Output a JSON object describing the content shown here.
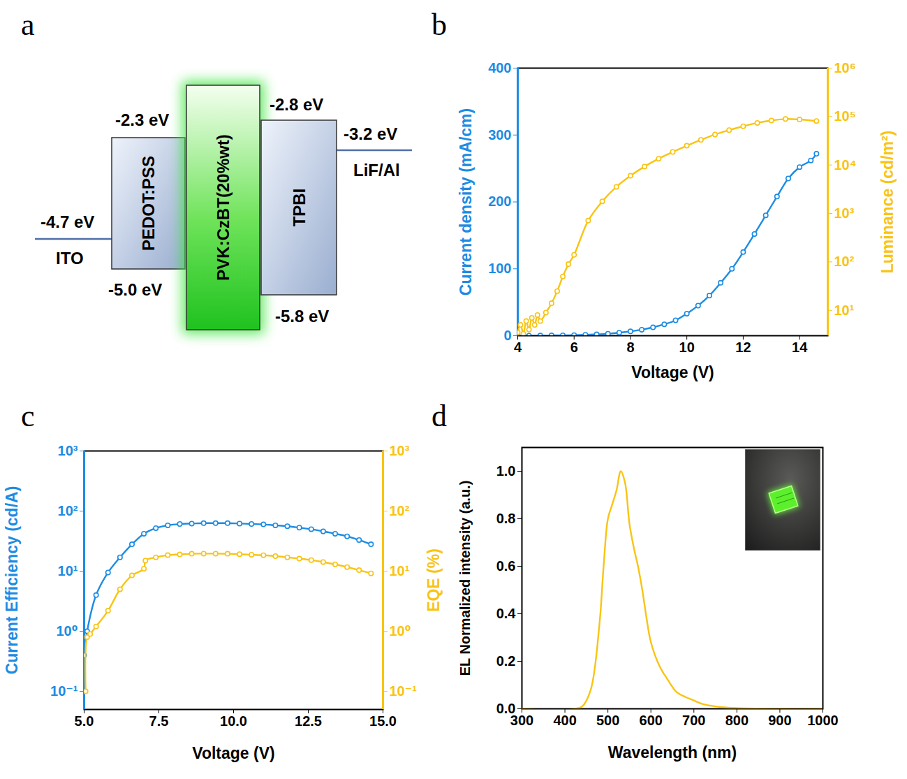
{
  "diagram": {
    "panel": "a",
    "electrodes": [
      {
        "name": "ITO",
        "level": "-4.7 eV"
      },
      {
        "name": "LiF/Al",
        "level": "-3.2 eV"
      }
    ],
    "layers": [
      {
        "name": "PEDOT:PSS",
        "lumo": "-2.3 eV",
        "homo": "-5.0 eV"
      },
      {
        "name": "PVK:CzBT(20%wt)"
      },
      {
        "name": "TPBI",
        "lumo": "-2.8 eV",
        "homo": "-5.8 eV"
      }
    ]
  },
  "chart_data": [
    {
      "panel": "b",
      "type": "line",
      "x_label": "Voltage (V)",
      "y_label": "Current density (mA/cm)",
      "y2_label": "Luminance (cd/m²)",
      "xlim": [
        4,
        15
      ],
      "xticks": [
        4,
        6,
        8,
        10,
        12,
        14
      ],
      "ylim": [
        0,
        400
      ],
      "yticks": [
        0,
        100,
        200,
        300,
        400
      ],
      "y2lim": [
        3,
        1000000
      ],
      "y2ticks": [
        {
          "value": 10,
          "label": "10¹"
        },
        {
          "value": 100,
          "label": "10²"
        },
        {
          "value": 1000,
          "label": "10³"
        },
        {
          "value": 10000,
          "label": "10⁴"
        },
        {
          "value": 100000,
          "label": "10⁵"
        },
        {
          "value": 1000000,
          "label": "10⁶"
        }
      ],
      "series": [
        {
          "axis": "y",
          "color": "#1c8ce3",
          "marker": "circle",
          "x": [
            4.0,
            4.4,
            4.8,
            5.2,
            5.6,
            6.0,
            6.4,
            6.8,
            7.2,
            7.6,
            8.0,
            8.4,
            8.8,
            9.2,
            9.6,
            10.0,
            10.4,
            10.8,
            11.2,
            11.6,
            12.0,
            12.4,
            12.8,
            13.2,
            13.6,
            14.0,
            14.4,
            14.6
          ],
          "values": [
            0,
            0,
            0.2,
            0.4,
            0.6,
            0.9,
            1.3,
            2,
            3,
            4.5,
            6.5,
            9,
            12.5,
            17,
            23,
            33,
            45,
            60,
            79,
            100,
            125,
            152,
            180,
            208,
            235,
            252,
            262,
            272
          ]
        },
        {
          "axis": "y2",
          "log": true,
          "color": "#f9c412",
          "marker": "circle",
          "x": [
            4.0,
            4.1,
            4.2,
            4.3,
            4.4,
            4.5,
            4.6,
            4.7,
            4.8,
            5.0,
            5.2,
            5.4,
            5.6,
            5.8,
            6.0,
            6.5,
            7.0,
            7.5,
            8.0,
            8.5,
            9.0,
            9.5,
            10.0,
            10.5,
            11.0,
            11.5,
            12.0,
            12.5,
            13.0,
            13.5,
            14.0,
            14.6
          ],
          "values": [
            3.5,
            5,
            3.3,
            6,
            4,
            7,
            5,
            8,
            6,
            9,
            14,
            25,
            50,
            90,
            140,
            710,
            1780,
            3550,
            6000,
            9300,
            13500,
            18600,
            25000,
            33000,
            42700,
            52500,
            63000,
            74000,
            83000,
            89000,
            87000,
            81000
          ]
        }
      ]
    },
    {
      "panel": "c",
      "type": "line",
      "x_label": "Voltage (V)",
      "y_label": "Current Efficiency (cd/A)",
      "y2_label": "EQE (%)",
      "xlim": [
        5,
        15
      ],
      "xticks": [
        {
          "value": 5,
          "label": "5.0"
        },
        {
          "value": 7.5,
          "label": "7.5"
        },
        {
          "value": 10,
          "label": "10.0"
        },
        {
          "value": 12.5,
          "label": "12.5"
        },
        {
          "value": 15,
          "label": "15.0"
        }
      ],
      "ylim": [
        0.05,
        1000
      ],
      "yticks": [
        {
          "value": 0.1,
          "label": "10⁻¹"
        },
        {
          "value": 1,
          "label": "10⁰"
        },
        {
          "value": 10,
          "label": "10¹"
        },
        {
          "value": 100,
          "label": "10²"
        },
        {
          "value": 1000,
          "label": "10³"
        }
      ],
      "y2lim": [
        0.05,
        1000
      ],
      "y2ticks": [
        {
          "value": 0.1,
          "label": "10⁻¹"
        },
        {
          "value": 1,
          "label": "10⁰"
        },
        {
          "value": 10,
          "label": "10¹"
        },
        {
          "value": 100,
          "label": "10²"
        },
        {
          "value": 1000,
          "label": "10³"
        }
      ],
      "series": [
        {
          "axis": "y",
          "log": true,
          "color": "#1c8ce3",
          "marker": "circle",
          "x": [
            5.0,
            5.1,
            5.4,
            5.8,
            6.2,
            6.6,
            7.0,
            7.4,
            7.8,
            8.2,
            8.6,
            9.0,
            9.4,
            9.8,
            10.2,
            10.6,
            11.0,
            11.4,
            11.8,
            12.2,
            12.6,
            13.0,
            13.4,
            13.8,
            14.2,
            14.6
          ],
          "values": [
            0.4,
            1.0,
            4,
            9.5,
            17,
            28,
            42,
            52,
            58,
            61,
            62,
            63,
            63,
            63,
            62,
            61,
            60,
            58,
            56,
            53,
            50,
            46,
            42,
            38,
            33,
            28
          ]
        },
        {
          "axis": "y2",
          "log": true,
          "color": "#f9c412",
          "marker": "circle",
          "x": [
            5.05,
            5.1,
            5.2,
            5.4,
            5.8,
            6.2,
            6.6,
            7.0,
            7.05,
            7.4,
            7.8,
            8.2,
            8.6,
            9.0,
            9.4,
            9.8,
            10.2,
            10.6,
            11.0,
            11.4,
            11.8,
            12.2,
            12.6,
            13.0,
            13.4,
            13.8,
            14.2,
            14.6
          ],
          "values": [
            0.1,
            0.8,
            0.9,
            1.2,
            2.2,
            5,
            8.5,
            11,
            15,
            17,
            18.5,
            19,
            19.5,
            19.6,
            19.6,
            19.5,
            19.2,
            18.8,
            18.4,
            17.8,
            17,
            16.2,
            15.3,
            14.2,
            13,
            11.7,
            10.4,
            9.2
          ]
        }
      ]
    },
    {
      "panel": "d",
      "type": "line",
      "x_label": "Wavelength (nm)",
      "y_label": "EL Normalized intensity (a.u.)",
      "xlim": [
        300,
        1000
      ],
      "xticks": [
        300,
        400,
        500,
        600,
        700,
        800,
        900,
        1000
      ],
      "ylim": [
        0,
        1.1
      ],
      "yticks": [
        {
          "value": 0,
          "label": "0.0"
        },
        {
          "value": 0.2,
          "label": "0.2"
        },
        {
          "value": 0.4,
          "label": "0.4"
        },
        {
          "value": 0.6,
          "label": "0.6"
        },
        {
          "value": 0.8,
          "label": "0.8"
        },
        {
          "value": 1,
          "label": "1.0"
        }
      ],
      "series": [
        {
          "axis": "y",
          "color": "#f9c412",
          "x": [
            300,
            420,
            440,
            460,
            480,
            490,
            500,
            510,
            520,
            530,
            540,
            550,
            560,
            570,
            580,
            590,
            600,
            620,
            640,
            660,
            680,
            700,
            720,
            750,
            800,
            900,
            1000
          ],
          "values": [
            0,
            0,
            0.01,
            0.08,
            0.35,
            0.6,
            0.8,
            0.86,
            0.92,
            1.0,
            0.95,
            0.78,
            0.68,
            0.6,
            0.5,
            0.38,
            0.28,
            0.18,
            0.12,
            0.07,
            0.05,
            0.035,
            0.02,
            0.01,
            0.003,
            0,
            0
          ]
        }
      ]
    }
  ]
}
